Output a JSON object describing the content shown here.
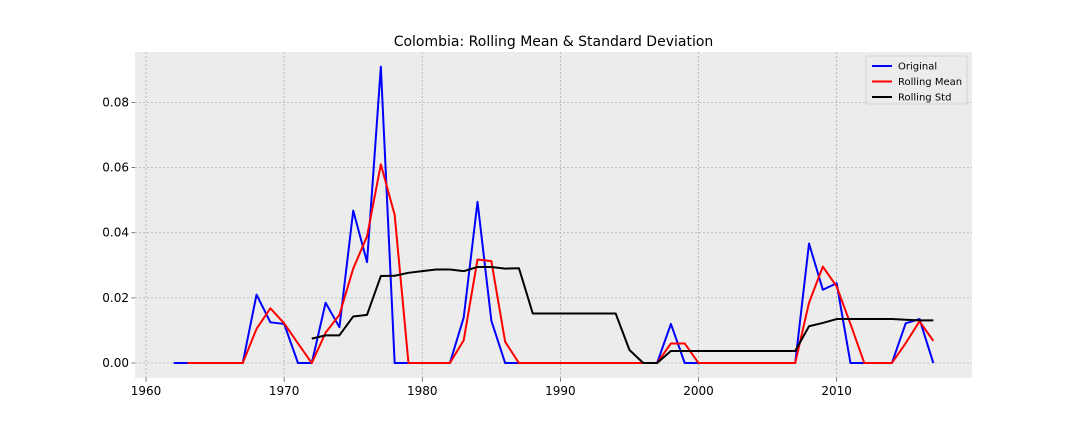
{
  "chart_data": {
    "type": "line",
    "title": "Colombia: Rolling Mean & Standard Deviation",
    "xlabel": "",
    "ylabel": "",
    "xlim": [
      1959.2,
      2019.8
    ],
    "ylim": [
      -0.0046,
      0.0955
    ],
    "x_ticks": [
      1960,
      1970,
      1980,
      1990,
      2000,
      2010
    ],
    "y_ticks": [
      0.0,
      0.02,
      0.04,
      0.06,
      0.08
    ],
    "y_tick_labels": [
      "0.00",
      "0.02",
      "0.04",
      "0.06",
      "0.08"
    ],
    "grid": true,
    "legend_position": "top-right",
    "series": [
      {
        "name": "Original",
        "color": "#0000ff",
        "x": [
          1962,
          1963,
          1964,
          1965,
          1966,
          1967,
          1968,
          1969,
          1970,
          1971,
          1972,
          1973,
          1974,
          1975,
          1976,
          1977,
          1978,
          1979,
          1980,
          1981,
          1982,
          1983,
          1984,
          1985,
          1986,
          1987,
          1988,
          1989,
          1990,
          1991,
          1992,
          1993,
          1994,
          1995,
          1996,
          1997,
          1998,
          1999,
          2000,
          2001,
          2002,
          2003,
          2004,
          2005,
          2006,
          2007,
          2008,
          2009,
          2010,
          2011,
          2012,
          2013,
          2014,
          2015,
          2016,
          2017
        ],
        "y": [
          0,
          0,
          0,
          0,
          0,
          0,
          0.021,
          0.0125,
          0.012,
          0,
          0,
          0.0185,
          0.011,
          0.0468,
          0.031,
          0.091,
          0,
          0,
          0,
          0,
          0,
          0.014,
          0.0495,
          0.013,
          0,
          0,
          0,
          0,
          0,
          0,
          0,
          0,
          0,
          0,
          0,
          0,
          0.012,
          0,
          0,
          0,
          0,
          0,
          0,
          0,
          0,
          0,
          0.0367,
          0.0225,
          0.0245,
          0,
          0,
          0,
          0,
          0.0122,
          0.0135,
          0
        ]
      },
      {
        "name": "Rolling Mean",
        "color": "#ff0000",
        "x": [
          1963,
          1964,
          1965,
          1966,
          1967,
          1968,
          1969,
          1970,
          1971,
          1972,
          1973,
          1974,
          1975,
          1976,
          1977,
          1978,
          1979,
          1980,
          1981,
          1982,
          1983,
          1984,
          1985,
          1986,
          1987,
          1988,
          1989,
          1990,
          1991,
          1992,
          1993,
          1994,
          1995,
          1996,
          1997,
          1998,
          1999,
          2000,
          2001,
          2002,
          2003,
          2004,
          2005,
          2006,
          2007,
          2008,
          2009,
          2010,
          2011,
          2012,
          2013,
          2014,
          2015,
          2016,
          2017
        ],
        "y": [
          0,
          0,
          0,
          0,
          0,
          0.0105,
          0.0168,
          0.0122,
          0.006,
          0,
          0.0093,
          0.0148,
          0.029,
          0.0389,
          0.061,
          0.0455,
          0,
          0,
          0,
          0,
          0.007,
          0.0318,
          0.0313,
          0.0065,
          0,
          0,
          0,
          0,
          0,
          0,
          0,
          0,
          0,
          0,
          0,
          0.006,
          0.006,
          0,
          0,
          0,
          0,
          0,
          0,
          0,
          0,
          0.0185,
          0.0296,
          0.0235,
          0.012,
          0,
          0,
          0,
          0.0061,
          0.0128,
          0.0068
        ]
      },
      {
        "name": "Rolling Std",
        "color": "#000000",
        "x": [
          1972,
          1973,
          1974,
          1975,
          1976,
          1977,
          1978,
          1979,
          1980,
          1981,
          1982,
          1983,
          1984,
          1985,
          1986,
          1987,
          1988,
          1989,
          1990,
          1991,
          1992,
          1993,
          1994,
          1995,
          1996,
          1997,
          1998,
          1999,
          2000,
          2001,
          2002,
          2003,
          2004,
          2005,
          2006,
          2007,
          2008,
          2009,
          2010,
          2011,
          2012,
          2013,
          2014,
          2015,
          2016,
          2017
        ],
        "y": [
          0.0075,
          0.0085,
          0.0085,
          0.0143,
          0.0148,
          0.0267,
          0.0268,
          0.0277,
          0.0282,
          0.0287,
          0.0287,
          0.0282,
          0.0295,
          0.0295,
          0.029,
          0.0291,
          0.0152,
          0.0152,
          0.0152,
          0.0152,
          0.0152,
          0.0152,
          0.0152,
          0.004,
          0,
          0,
          0.0037,
          0.0037,
          0.0037,
          0.0037,
          0.0037,
          0.0037,
          0.0037,
          0.0037,
          0.0037,
          0.0037,
          0.0113,
          0.0123,
          0.0135,
          0.0135,
          0.0135,
          0.0135,
          0.0135,
          0.0133,
          0.0131,
          0.0131
        ]
      }
    ]
  }
}
